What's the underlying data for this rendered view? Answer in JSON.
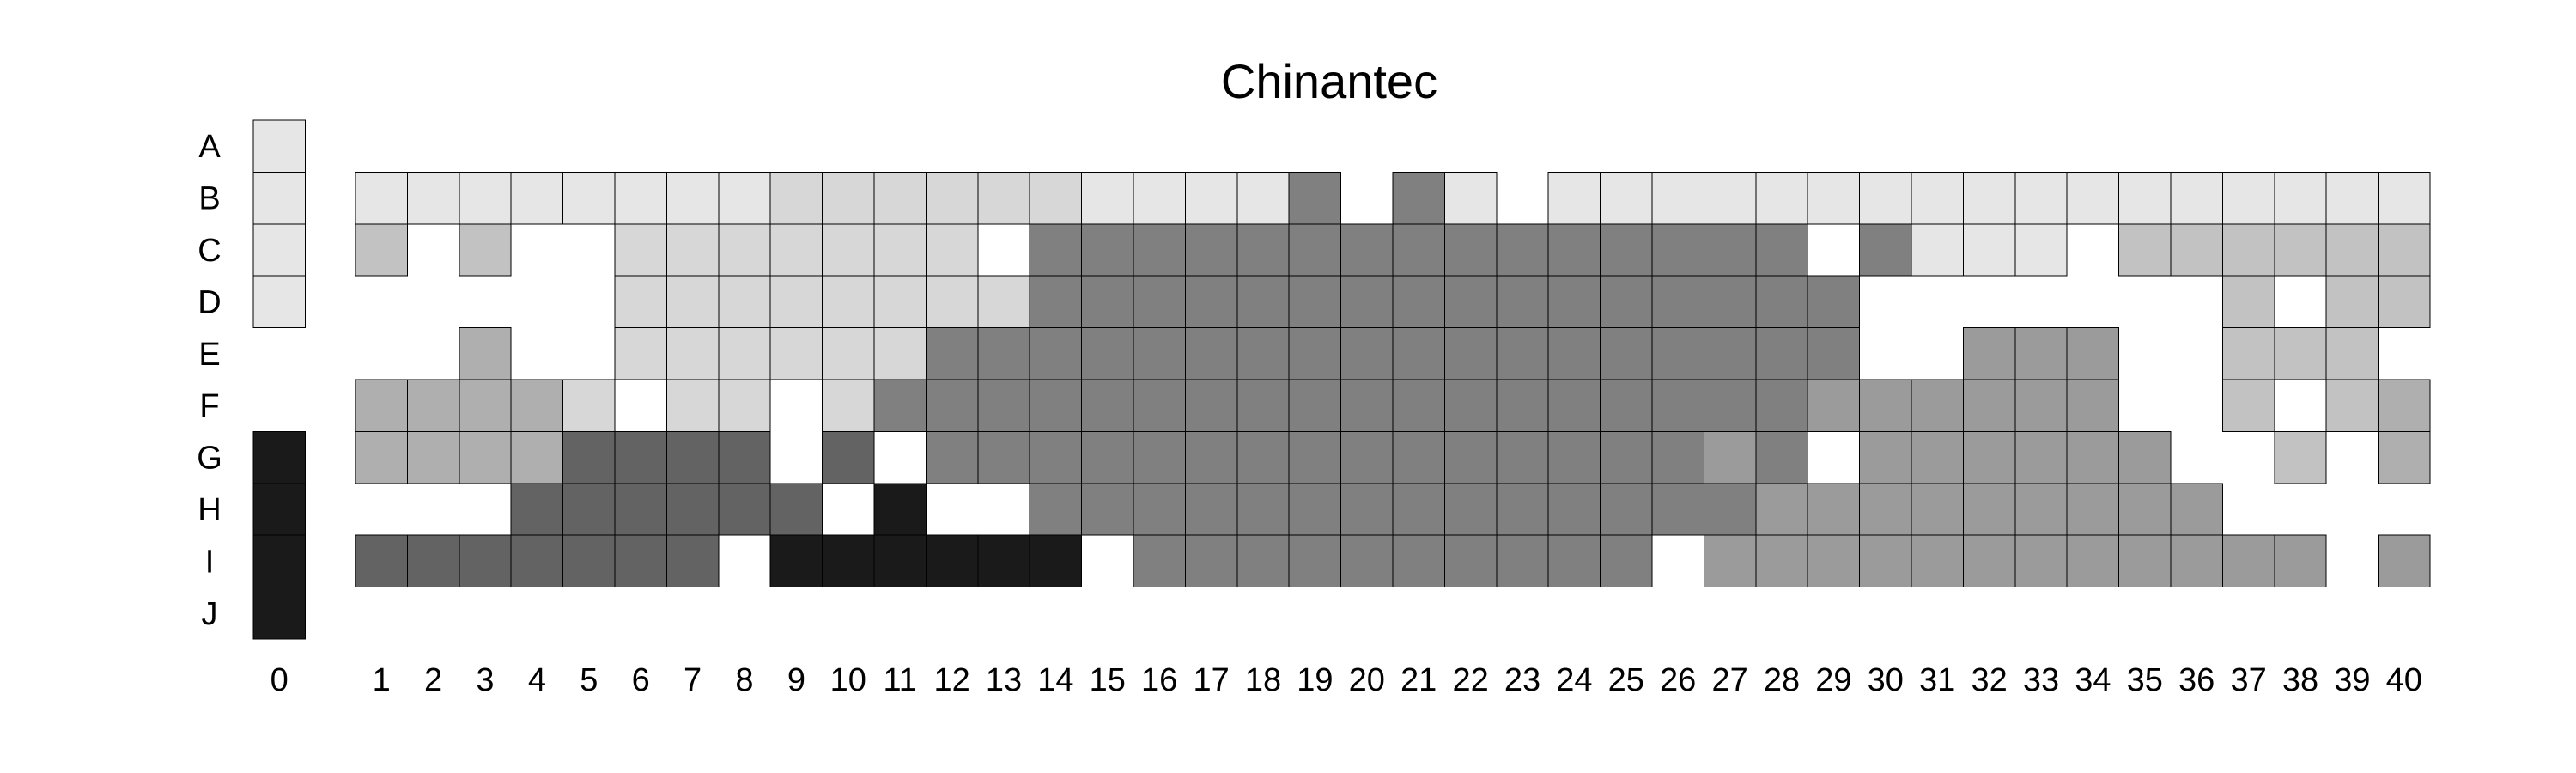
{
  "chart_data": {
    "type": "heatmap",
    "title": "Chinantec",
    "rows": [
      "A",
      "B",
      "C",
      "D",
      "E",
      "F",
      "G",
      "H",
      "I",
      "J"
    ],
    "columns": [
      "0",
      "1",
      "2",
      "3",
      "4",
      "5",
      "6",
      "7",
      "8",
      "9",
      "10",
      "11",
      "12",
      "13",
      "14",
      "15",
      "16",
      "17",
      "18",
      "19",
      "20",
      "21",
      "22",
      "23",
      "24",
      "25",
      "26",
      "27",
      "28",
      "29",
      "30",
      "31",
      "32",
      "33",
      "34",
      "35",
      "36",
      "37",
      "38",
      "39",
      "40"
    ],
    "legend": "none",
    "grid": false,
    "shade_colors": {
      "1": "#e6e6e6",
      "2": "#d7d7d7",
      "3": "#c2c2c2",
      "4": "#afafaf",
      "5": "#9b9b9b",
      "6": "#808080",
      "7": "#636363",
      "8": "#1a1a1a"
    },
    "values": [
      [
        "1",
        "0",
        "0",
        "0",
        "0",
        "0",
        "0",
        "0",
        "0",
        "0",
        "0",
        "0",
        "0",
        "0",
        "0",
        "0",
        "0",
        "0",
        "0",
        "0",
        "0",
        "0",
        "0",
        "0",
        "0",
        "0",
        "0",
        "0",
        "0",
        "0",
        "0",
        "0",
        "0",
        "0",
        "0",
        "0",
        "0",
        "0",
        "0",
        "0",
        "0"
      ],
      [
        "1",
        "1",
        "1",
        "1",
        "1",
        "1",
        "1",
        "1",
        "1",
        "2",
        "2",
        "2",
        "2",
        "2",
        "2",
        "1",
        "1",
        "1",
        "1",
        "6",
        "0",
        "6",
        "1",
        "0",
        "1",
        "1",
        "1",
        "1",
        "1",
        "1",
        "1",
        "1",
        "1",
        "1",
        "1",
        "1",
        "1",
        "1",
        "1",
        "1",
        "1"
      ],
      [
        "1",
        "3",
        "0",
        "3",
        "0",
        "0",
        "2",
        "2",
        "2",
        "2",
        "2",
        "2",
        "2",
        "0",
        "6",
        "6",
        "6",
        "6",
        "6",
        "6",
        "6",
        "6",
        "6",
        "6",
        "6",
        "6",
        "6",
        "6",
        "6",
        "0",
        "6",
        "1",
        "1",
        "1",
        "0",
        "3",
        "3",
        "3",
        "3",
        "3",
        "3"
      ],
      [
        "1",
        "0",
        "0",
        "0",
        "0",
        "0",
        "2",
        "2",
        "2",
        "2",
        "2",
        "2",
        "2",
        "2",
        "6",
        "6",
        "6",
        "6",
        "6",
        "6",
        "6",
        "6",
        "6",
        "6",
        "6",
        "6",
        "6",
        "6",
        "6",
        "6",
        "0",
        "0",
        "0",
        "0",
        "0",
        "0",
        "0",
        "3",
        "0",
        "3",
        "3"
      ],
      [
        "0",
        "0",
        "0",
        "4",
        "0",
        "0",
        "2",
        "2",
        "2",
        "2",
        "2",
        "2",
        "6",
        "6",
        "6",
        "6",
        "6",
        "6",
        "6",
        "6",
        "6",
        "6",
        "6",
        "6",
        "6",
        "6",
        "6",
        "6",
        "6",
        "6",
        "0",
        "0",
        "5",
        "5",
        "5",
        "0",
        "0",
        "3",
        "3",
        "3",
        "0"
      ],
      [
        "0",
        "4",
        "4",
        "4",
        "4",
        "2",
        "0",
        "2",
        "2",
        "0",
        "2",
        "6",
        "6",
        "6",
        "6",
        "6",
        "6",
        "6",
        "6",
        "6",
        "6",
        "6",
        "6",
        "6",
        "6",
        "6",
        "6",
        "6",
        "6",
        "5",
        "5",
        "5",
        "5",
        "5",
        "5",
        "0",
        "0",
        "3",
        "0",
        "3",
        "4"
      ],
      [
        "8",
        "4",
        "4",
        "4",
        "4",
        "7",
        "7",
        "7",
        "7",
        "0",
        "7",
        "0",
        "6",
        "6",
        "6",
        "6",
        "6",
        "6",
        "6",
        "6",
        "6",
        "6",
        "6",
        "6",
        "6",
        "6",
        "6",
        "5",
        "6",
        "0",
        "5",
        "5",
        "5",
        "5",
        "5",
        "5",
        "0",
        "0",
        "3",
        "0",
        "4"
      ],
      [
        "8",
        "0",
        "0",
        "0",
        "7",
        "7",
        "7",
        "7",
        "7",
        "7",
        "0",
        "8",
        "0",
        "0",
        "6",
        "6",
        "6",
        "6",
        "6",
        "6",
        "6",
        "6",
        "6",
        "6",
        "6",
        "6",
        "6",
        "6",
        "5",
        "5",
        "5",
        "5",
        "5",
        "5",
        "5",
        "5",
        "5",
        "0",
        "0",
        "0",
        "0"
      ],
      [
        "8",
        "7",
        "7",
        "7",
        "7",
        "7",
        "7",
        "7",
        "0",
        "8",
        "8",
        "8",
        "8",
        "8",
        "8",
        "0",
        "6",
        "6",
        "6",
        "6",
        "6",
        "6",
        "6",
        "6",
        "6",
        "6",
        "0",
        "5",
        "5",
        "5",
        "5",
        "5",
        "5",
        "5",
        "5",
        "5",
        "5",
        "5",
        "5",
        "0",
        "5"
      ],
      [
        "8",
        "0",
        "0",
        "0",
        "0",
        "0",
        "0",
        "0",
        "0",
        "0",
        "0",
        "0",
        "0",
        "0",
        "0",
        "0",
        "0",
        "0",
        "0",
        "0",
        "0",
        "0",
        "0",
        "0",
        "0",
        "0",
        "0",
        "0",
        "0",
        "0",
        "0",
        "0",
        "0",
        "0",
        "0",
        "0",
        "0",
        "0",
        "0",
        "0",
        "0"
      ]
    ]
  }
}
